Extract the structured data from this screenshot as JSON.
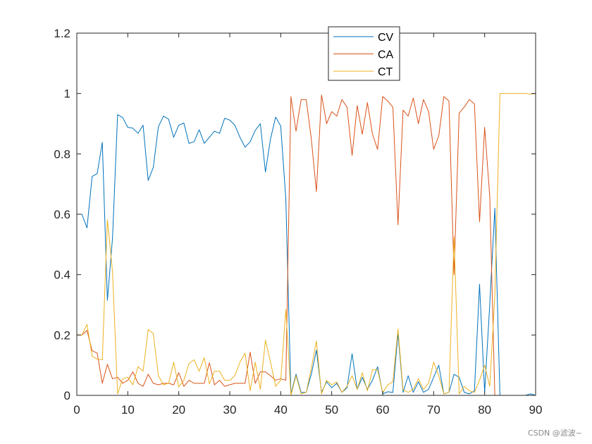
{
  "chart_data": {
    "type": "line",
    "title": "",
    "xlabel": "",
    "ylabel": "",
    "xlim": [
      0,
      90
    ],
    "ylim": [
      0,
      1.2
    ],
    "xticks": [
      0,
      10,
      20,
      30,
      40,
      50,
      60,
      70,
      80,
      90
    ],
    "xtick_labels": [
      "0",
      "10",
      "20",
      "30",
      "40",
      "50",
      "60",
      "70",
      "80",
      "90"
    ],
    "yticks": [
      0,
      0.2,
      0.4,
      0.6,
      0.8,
      1,
      1.2
    ],
    "ytick_labels": [
      "0",
      "0.2",
      "0.4",
      "0.6",
      "0.8",
      "1",
      "1.2"
    ],
    "grid": false,
    "legend_position": "top-center",
    "x": [
      0,
      1,
      2,
      3,
      4,
      5,
      6,
      7,
      8,
      9,
      10,
      11,
      12,
      13,
      14,
      15,
      16,
      17,
      18,
      19,
      20,
      21,
      22,
      23,
      24,
      25,
      26,
      27,
      28,
      29,
      30,
      31,
      32,
      33,
      34,
      35,
      36,
      37,
      38,
      39,
      40,
      41,
      42,
      43,
      44,
      45,
      46,
      47,
      48,
      49,
      50,
      51,
      52,
      53,
      54,
      55,
      56,
      57,
      58,
      59,
      60,
      61,
      62,
      63,
      64,
      65,
      66,
      67,
      68,
      69,
      70,
      71,
      72,
      73,
      74,
      75,
      76,
      77,
      78,
      79,
      80,
      81,
      82,
      83,
      84,
      85,
      86,
      87,
      88,
      89,
      90
    ],
    "series": [
      {
        "name": "CV",
        "color": "#0072BD",
        "values": [
          0.6,
          0.6,
          0.555,
          0.725,
          0.735,
          0.838,
          0.315,
          0.52,
          0.93,
          0.92,
          0.888,
          0.885,
          0.868,
          0.895,
          0.712,
          0.755,
          0.89,
          0.925,
          0.915,
          0.855,
          0.895,
          0.902,
          0.835,
          0.84,
          0.88,
          0.835,
          0.855,
          0.875,
          0.868,
          0.918,
          0.912,
          0.895,
          0.855,
          0.822,
          0.84,
          0.878,
          0.9,
          0.74,
          0.85,
          0.922,
          0.892,
          0.65,
          0.005,
          0.07,
          0.01,
          0.01,
          0.07,
          0.15,
          0.01,
          0.045,
          0.025,
          0.04,
          0.01,
          0.025,
          0.138,
          0.02,
          0.06,
          0.02,
          0.05,
          0.095,
          0.005,
          0.012,
          0.01,
          0.205,
          0.01,
          0.065,
          0.01,
          0.045,
          0.01,
          0.02,
          0.06,
          0.1,
          0.005,
          0.01,
          0.07,
          0.06,
          0.01,
          0.005,
          0.015,
          0.368,
          0.01,
          0.3,
          0.62,
          0.0,
          0.0,
          0.0,
          0.0,
          0.0,
          0.0,
          0.005,
          0.0
        ]
      },
      {
        "name": "CA",
        "color": "#D95319",
        "values": [
          0.2,
          0.2,
          0.215,
          0.148,
          0.14,
          0.04,
          0.103,
          0.055,
          0.06,
          0.04,
          0.05,
          0.078,
          0.04,
          0.03,
          0.07,
          0.04,
          0.035,
          0.04,
          0.04,
          0.035,
          0.075,
          0.03,
          0.05,
          0.04,
          0.04,
          0.04,
          0.108,
          0.035,
          0.05,
          0.03,
          0.035,
          0.04,
          0.04,
          0.04,
          0.143,
          0.04,
          0.078,
          0.078,
          0.065,
          0.05,
          0.055,
          0.05,
          0.99,
          0.875,
          0.98,
          0.98,
          0.85,
          0.675,
          0.995,
          0.9,
          0.94,
          0.925,
          0.98,
          0.955,
          0.795,
          0.96,
          0.865,
          0.97,
          0.865,
          0.815,
          0.99,
          0.975,
          0.955,
          0.565,
          0.945,
          0.925,
          0.985,
          0.9,
          0.98,
          0.94,
          0.815,
          0.86,
          0.99,
          0.975,
          0.4,
          0.935,
          0.955,
          0.98,
          0.965,
          0.575,
          0.888,
          0.66,
          0.0,
          0.0,
          0.0,
          0.0,
          0.0,
          0.0,
          0.0,
          0.0,
          0.0
        ]
      },
      {
        "name": "CT",
        "color": "#EDB120",
        "values": [
          0.2,
          0.2,
          0.235,
          0.13,
          0.12,
          0.118,
          0.582,
          0.41,
          0.005,
          0.055,
          0.06,
          0.035,
          0.095,
          0.08,
          0.218,
          0.205,
          0.065,
          0.035,
          0.04,
          0.11,
          0.028,
          0.05,
          0.105,
          0.118,
          0.08,
          0.125,
          0.038,
          0.08,
          0.08,
          0.05,
          0.05,
          0.065,
          0.11,
          0.14,
          0.015,
          0.11,
          0.02,
          0.183,
          0.11,
          0.03,
          0.05,
          0.285,
          0.0,
          0.065,
          0.005,
          0.01,
          0.09,
          0.18,
          0.005,
          0.05,
          0.035,
          0.045,
          0.01,
          0.03,
          0.065,
          0.02,
          0.075,
          0.015,
          0.085,
          0.085,
          0.008,
          0.035,
          0.045,
          0.22,
          0.018,
          0.01,
          0.02,
          0.055,
          0.02,
          0.04,
          0.11,
          0.065,
          0.005,
          0.01,
          0.525,
          0.005,
          0.03,
          0.015,
          0.01,
          0.05,
          0.1,
          0.03,
          0.33,
          1.0,
          1.0,
          1.0,
          1.0,
          1.0,
          1.0,
          0.998,
          1.0
        ]
      }
    ]
  },
  "watermark": "CSDN @滤波~"
}
